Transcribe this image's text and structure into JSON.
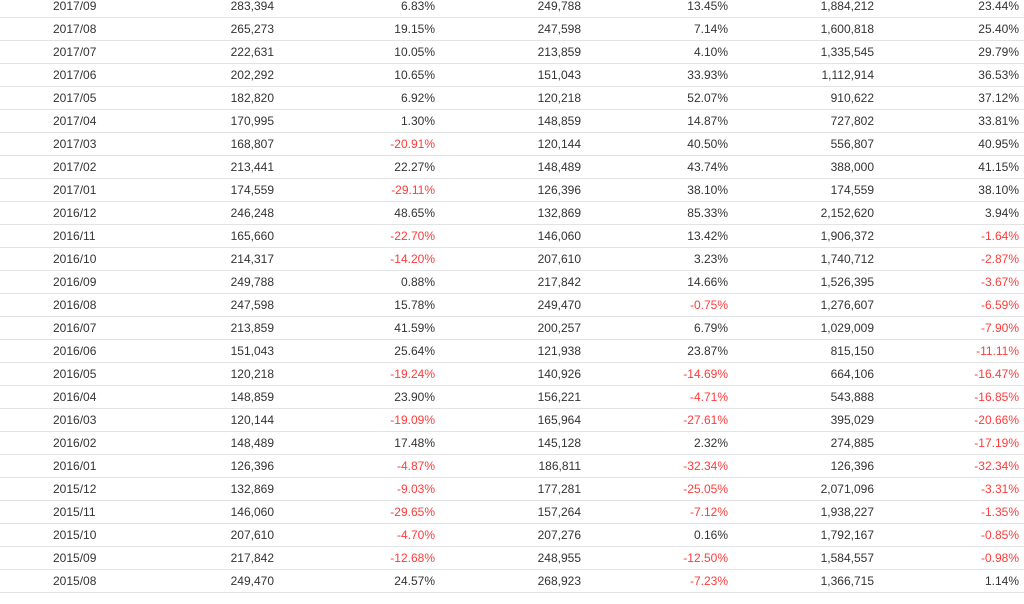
{
  "colors": {
    "text": "#333333",
    "negative": "#ff3b3b",
    "row_border": "#e3e3e3"
  },
  "table": {
    "rows": [
      [
        "2017/09",
        "283,394",
        "6.83%",
        "249,788",
        "13.45%",
        "1,884,212",
        "23.44%"
      ],
      [
        "2017/08",
        "265,273",
        "19.15%",
        "247,598",
        "7.14%",
        "1,600,818",
        "25.40%"
      ],
      [
        "2017/07",
        "222,631",
        "10.05%",
        "213,859",
        "4.10%",
        "1,335,545",
        "29.79%"
      ],
      [
        "2017/06",
        "202,292",
        "10.65%",
        "151,043",
        "33.93%",
        "1,112,914",
        "36.53%"
      ],
      [
        "2017/05",
        "182,820",
        "6.92%",
        "120,218",
        "52.07%",
        "910,622",
        "37.12%"
      ],
      [
        "2017/04",
        "170,995",
        "1.30%",
        "148,859",
        "14.87%",
        "727,802",
        "33.81%"
      ],
      [
        "2017/03",
        "168,807",
        "-20.91%",
        "120,144",
        "40.50%",
        "556,807",
        "40.95%"
      ],
      [
        "2017/02",
        "213,441",
        "22.27%",
        "148,489",
        "43.74%",
        "388,000",
        "41.15%"
      ],
      [
        "2017/01",
        "174,559",
        "-29.11%",
        "126,396",
        "38.10%",
        "174,559",
        "38.10%"
      ],
      [
        "2016/12",
        "246,248",
        "48.65%",
        "132,869",
        "85.33%",
        "2,152,620",
        "3.94%"
      ],
      [
        "2016/11",
        "165,660",
        "-22.70%",
        "146,060",
        "13.42%",
        "1,906,372",
        "-1.64%"
      ],
      [
        "2016/10",
        "214,317",
        "-14.20%",
        "207,610",
        "3.23%",
        "1,740,712",
        "-2.87%"
      ],
      [
        "2016/09",
        "249,788",
        "0.88%",
        "217,842",
        "14.66%",
        "1,526,395",
        "-3.67%"
      ],
      [
        "2016/08",
        "247,598",
        "15.78%",
        "249,470",
        "-0.75%",
        "1,276,607",
        "-6.59%"
      ],
      [
        "2016/07",
        "213,859",
        "41.59%",
        "200,257",
        "6.79%",
        "1,029,009",
        "-7.90%"
      ],
      [
        "2016/06",
        "151,043",
        "25.64%",
        "121,938",
        "23.87%",
        "815,150",
        "-11.11%"
      ],
      [
        "2016/05",
        "120,218",
        "-19.24%",
        "140,926",
        "-14.69%",
        "664,106",
        "-16.47%"
      ],
      [
        "2016/04",
        "148,859",
        "23.90%",
        "156,221",
        "-4.71%",
        "543,888",
        "-16.85%"
      ],
      [
        "2016/03",
        "120,144",
        "-19.09%",
        "165,964",
        "-27.61%",
        "395,029",
        "-20.66%"
      ],
      [
        "2016/02",
        "148,489",
        "17.48%",
        "145,128",
        "2.32%",
        "274,885",
        "-17.19%"
      ],
      [
        "2016/01",
        "126,396",
        "-4.87%",
        "186,811",
        "-32.34%",
        "126,396",
        "-32.34%"
      ],
      [
        "2015/12",
        "132,869",
        "-9.03%",
        "177,281",
        "-25.05%",
        "2,071,096",
        "-3.31%"
      ],
      [
        "2015/11",
        "146,060",
        "-29.65%",
        "157,264",
        "-7.12%",
        "1,938,227",
        "-1.35%"
      ],
      [
        "2015/10",
        "207,610",
        "-4.70%",
        "207,276",
        "0.16%",
        "1,792,167",
        "-0.85%"
      ],
      [
        "2015/09",
        "217,842",
        "-12.68%",
        "248,955",
        "-12.50%",
        "1,584,557",
        "-0.98%"
      ],
      [
        "2015/08",
        "249,470",
        "24.57%",
        "268,923",
        "-7.23%",
        "1,366,715",
        "1.14%"
      ]
    ]
  }
}
